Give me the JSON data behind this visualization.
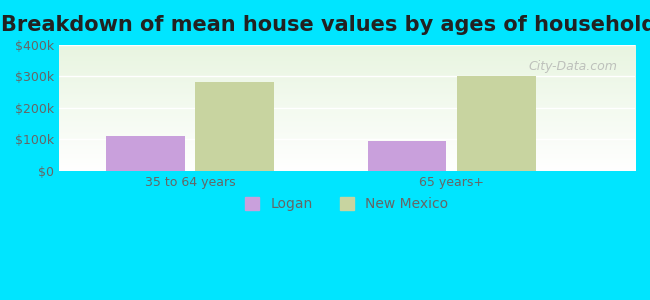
{
  "title": "Breakdown of mean house values by ages of householders",
  "categories": [
    "35 to 64 years",
    "65 years+"
  ],
  "series": {
    "Logan": [
      112000,
      95000
    ],
    "New Mexico": [
      283000,
      302000
    ]
  },
  "colors": {
    "Logan": "#c9a0dc",
    "New Mexico": "#c8d4a0"
  },
  "ylim": [
    0,
    400000
  ],
  "yticks": [
    0,
    100000,
    200000,
    300000,
    400000
  ],
  "ytick_labels": [
    "$0",
    "$100k",
    "$200k",
    "$300k",
    "$400k"
  ],
  "background_color": "#00e5ff",
  "plot_bg_gradient_top": "#e8f5e0",
  "plot_bg_gradient_bottom": "#ffffff",
  "title_fontsize": 15,
  "tick_fontsize": 9,
  "legend_fontsize": 10,
  "bar_width": 0.3,
  "watermark": "City-Data.com"
}
